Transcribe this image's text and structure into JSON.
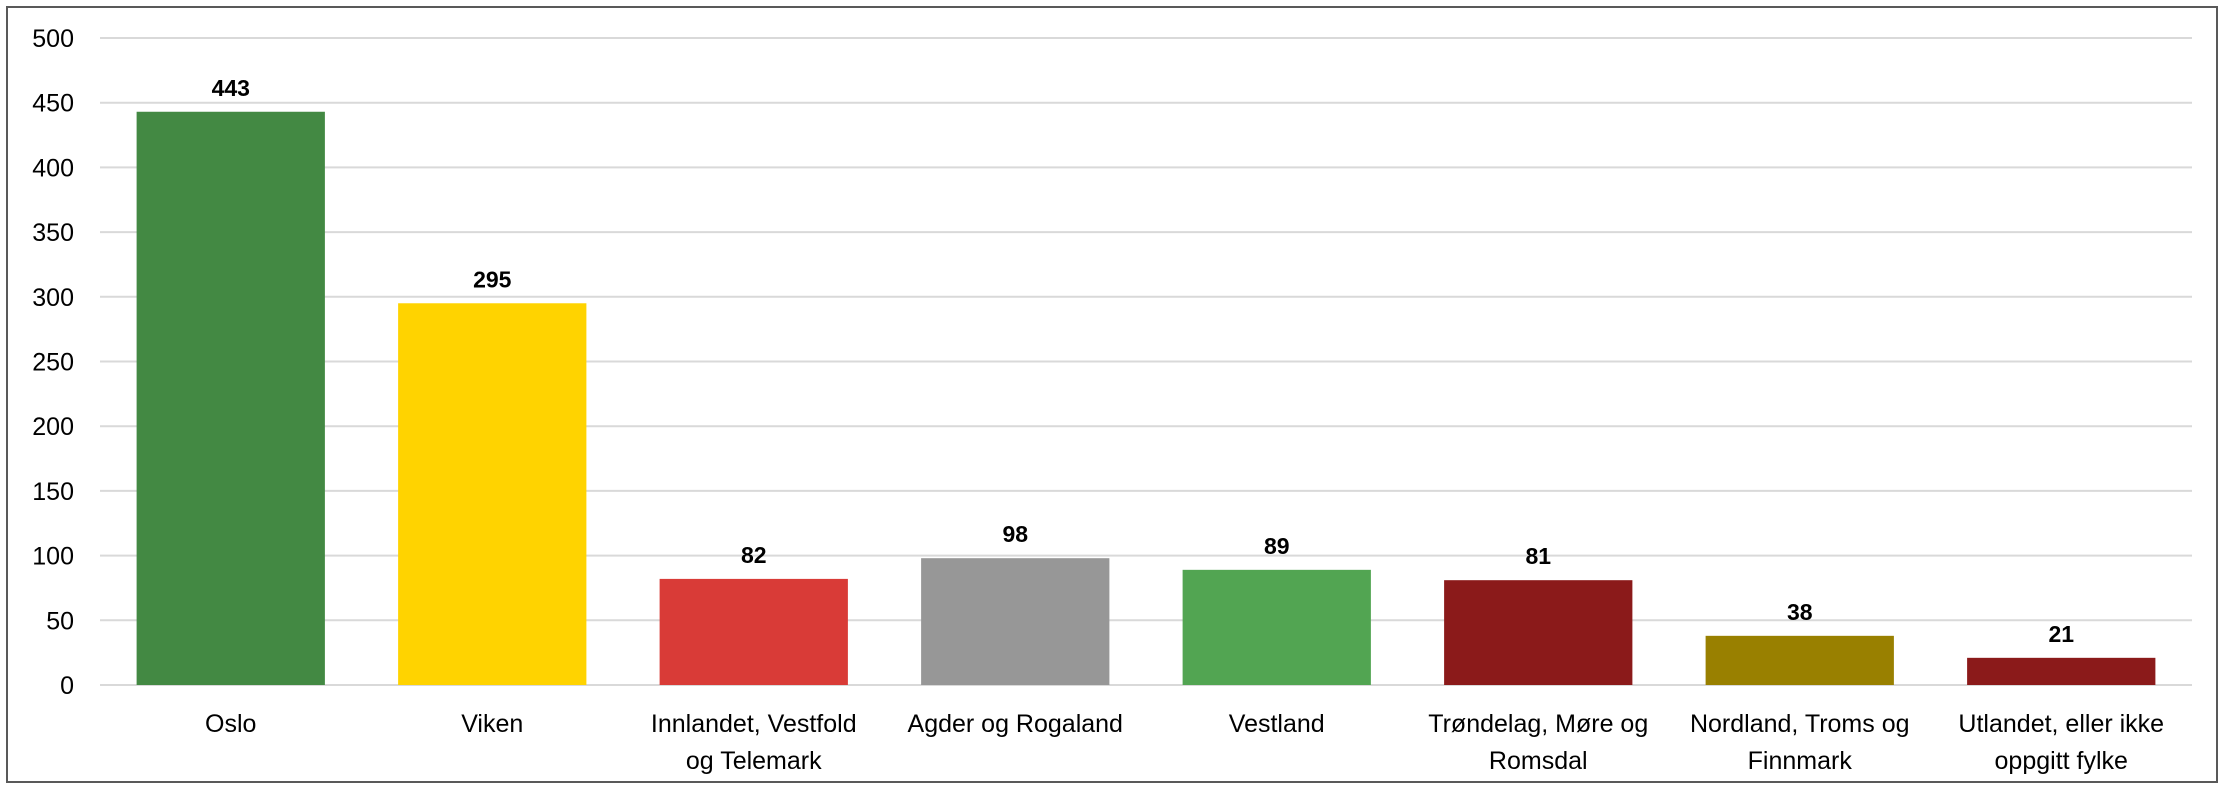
{
  "chart_data": {
    "type": "bar",
    "title": "",
    "xlabel": "",
    "ylabel": "",
    "ylim": [
      0,
      500
    ],
    "yticks": [
      0,
      50,
      100,
      150,
      200,
      250,
      300,
      350,
      400,
      450,
      500
    ],
    "grid": true,
    "legend": "none",
    "categories": [
      [
        "Oslo"
      ],
      [
        "Viken"
      ],
      [
        "Innlandet, Vestfold",
        "og Telemark"
      ],
      [
        "Agder og Rogaland"
      ],
      [
        "Vestland"
      ],
      [
        "Trøndelag, Møre og",
        "Romsdal"
      ],
      [
        "Nordland, Troms og",
        "Finnmark"
      ],
      [
        "Utlandet, eller ikke",
        "oppgitt fylke"
      ]
    ],
    "values": [
      443,
      295,
      82,
      98,
      89,
      81,
      38,
      21
    ],
    "colors": [
      "#438943",
      "#FFD300",
      "#D93B37",
      "#979797",
      "#52A552",
      "#8B1A1A",
      "#998000",
      "#8B1A1A"
    ]
  }
}
